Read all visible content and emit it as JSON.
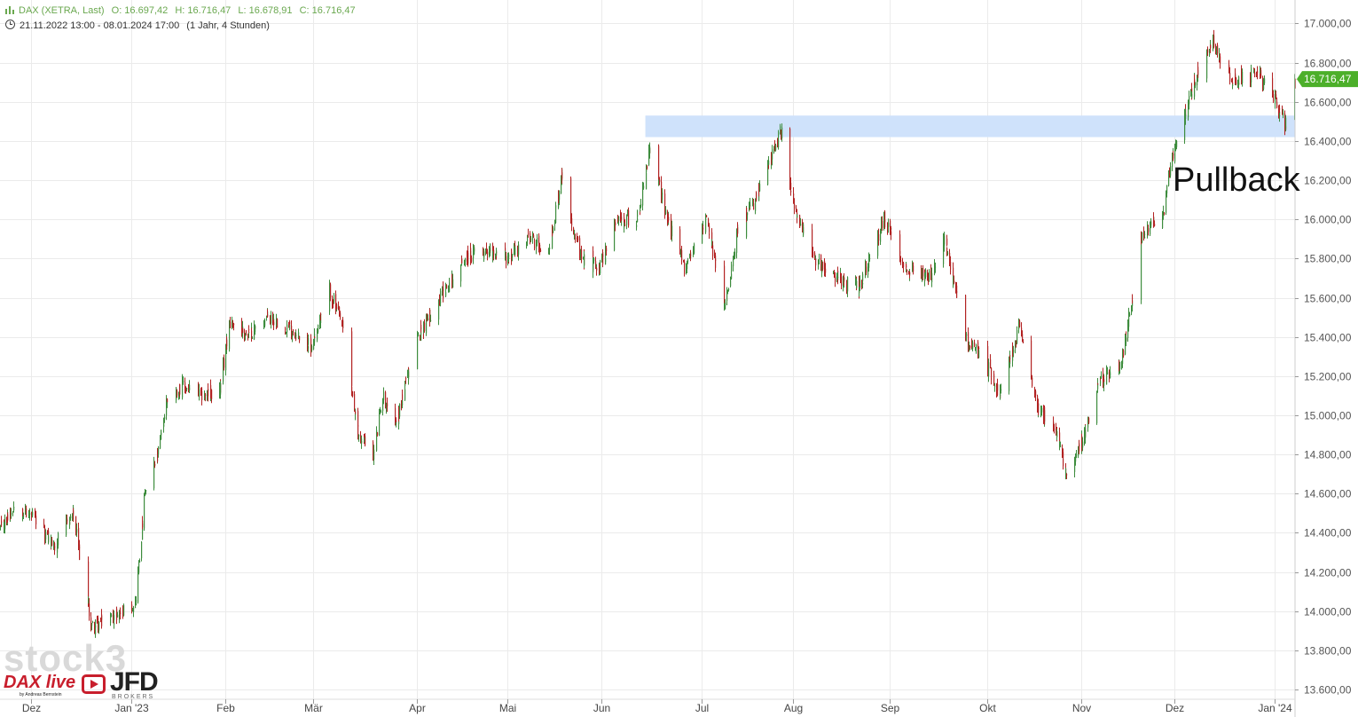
{
  "header": {
    "symbol": "DAX (XETRA, Last)",
    "open": "O: 16.697,42",
    "high": "H: 16.716,47",
    "low": "L: 16.678,91",
    "close": "C: 16.716,47",
    "range": "21.11.2022 13:00 - 08.01.2024 17:00",
    "interval": "(1 Jahr, 4 Stunden)"
  },
  "annotation": {
    "text": "Pullback"
  },
  "watermark": {
    "text": "stock3"
  },
  "branding": {
    "dax": "DAX live",
    "dax_sub": "by Andreas Bernstein",
    "jfd": "JFD",
    "brokers": "BROKERS"
  },
  "colors": {
    "up": "#3d8c3d",
    "down": "#b22222",
    "grid": "#ebebeb",
    "zone": "#cfe2fb",
    "price_tag": "#4caf2a",
    "header_green": "#6aa84f"
  },
  "chart_data": {
    "type": "candlestick",
    "title": "DAX (XETRA, Last)",
    "ylim": [
      13550,
      17120
    ],
    "y_ticks": [
      "17.000,00",
      "16.800,00",
      "16.600,00",
      "16.400,00",
      "16.200,00",
      "16.000,00",
      "15.800,00",
      "15.600,00",
      "15.400,00",
      "15.200,00",
      "15.000,00",
      "14.800,00",
      "14.600,00",
      "14.400,00",
      "14.200,00",
      "14.000,00",
      "13.800,00",
      "13.600,00"
    ],
    "y_tick_values": [
      17000,
      16800,
      16600,
      16400,
      16200,
      16000,
      15800,
      15600,
      15400,
      15200,
      15000,
      14800,
      14600,
      14400,
      14200,
      14000,
      13800,
      13600
    ],
    "x_ticks": [
      "Dez",
      "Jan '23",
      "Feb",
      "Mär",
      "Apr",
      "Mai",
      "Jun",
      "Jul",
      "Aug",
      "Sep",
      "Okt",
      "Nov",
      "Dez",
      "Jan '24"
    ],
    "x_tick_dates": [
      "2022-12-01",
      "2023-01-02",
      "2023-02-01",
      "2023-03-01",
      "2023-04-03",
      "2023-05-02",
      "2023-06-01",
      "2023-07-03",
      "2023-08-01",
      "2023-09-01",
      "2023-10-02",
      "2023-11-01",
      "2023-12-01",
      "2024-01-02"
    ],
    "date_range": [
      "2022-11-21",
      "2024-01-08"
    ],
    "last_price": {
      "value": 16716.47,
      "label": "16.716,47"
    },
    "zone": {
      "start": "2023-06-15",
      "low": 16420,
      "high": 16530
    },
    "path": [
      [
        "2022-11-21",
        14420
      ],
      [
        "2022-11-25",
        14540
      ],
      [
        "2022-12-01",
        14480
      ],
      [
        "2022-12-08",
        14330
      ],
      [
        "2022-12-14",
        14500
      ],
      [
        "2022-12-20",
        13920
      ],
      [
        "2022-12-28",
        13980
      ],
      [
        "2023-01-03",
        14050
      ],
      [
        "2023-01-06",
        14600
      ],
      [
        "2023-01-10",
        14790
      ],
      [
        "2023-01-13",
        15080
      ],
      [
        "2023-01-18",
        15150
      ],
      [
        "2023-01-24",
        15100
      ],
      [
        "2023-01-30",
        15130
      ],
      [
        "2023-02-02",
        15480
      ],
      [
        "2023-02-08",
        15410
      ],
      [
        "2023-02-14",
        15500
      ],
      [
        "2023-02-20",
        15460
      ],
      [
        "2023-02-28",
        15350
      ],
      [
        "2023-03-06",
        15640
      ],
      [
        "2023-03-10",
        15450
      ],
      [
        "2023-03-15",
        14900
      ],
      [
        "2023-03-20",
        14800
      ],
      [
        "2023-03-23",
        15100
      ],
      [
        "2023-03-27",
        14960
      ],
      [
        "2023-04-03",
        15400
      ],
      [
        "2023-04-10",
        15600
      ],
      [
        "2023-04-18",
        15800
      ],
      [
        "2023-04-26",
        15850
      ],
      [
        "2023-05-02",
        15800
      ],
      [
        "2023-05-08",
        15900
      ],
      [
        "2023-05-15",
        15850
      ],
      [
        "2023-05-19",
        16230
      ],
      [
        "2023-05-25",
        15800
      ],
      [
        "2023-05-31",
        15760
      ],
      [
        "2023-06-06",
        16000
      ],
      [
        "2023-06-12",
        16000
      ],
      [
        "2023-06-16",
        16350
      ],
      [
        "2023-06-22",
        16000
      ],
      [
        "2023-06-27",
        15750
      ],
      [
        "2023-07-04",
        16000
      ],
      [
        "2023-07-10",
        15550
      ],
      [
        "2023-07-14",
        15950
      ],
      [
        "2023-07-20",
        16100
      ],
      [
        "2023-07-28",
        16450
      ],
      [
        "2023-08-02",
        16000
      ],
      [
        "2023-08-08",
        15800
      ],
      [
        "2023-08-15",
        15700
      ],
      [
        "2023-08-22",
        15650
      ],
      [
        "2023-08-30",
        16000
      ],
      [
        "2023-09-06",
        15750
      ],
      [
        "2023-09-14",
        15700
      ],
      [
        "2023-09-18",
        15900
      ],
      [
        "2023-09-25",
        15400
      ],
      [
        "2023-10-02",
        15250
      ],
      [
        "2023-10-06",
        15100
      ],
      [
        "2023-10-12",
        15450
      ],
      [
        "2023-10-18",
        15050
      ],
      [
        "2023-10-24",
        14900
      ],
      [
        "2023-10-27",
        14720
      ],
      [
        "2023-11-02",
        14900
      ],
      [
        "2023-11-06",
        15150
      ],
      [
        "2023-11-14",
        15300
      ],
      [
        "2023-11-20",
        15900
      ],
      [
        "2023-11-27",
        16050
      ],
      [
        "2023-12-01",
        16400
      ],
      [
        "2023-12-07",
        16700
      ],
      [
        "2023-12-13",
        16900
      ],
      [
        "2023-12-19",
        16700
      ],
      [
        "2023-12-27",
        16750
      ],
      [
        "2024-01-02",
        16600
      ],
      [
        "2024-01-05",
        16480
      ],
      [
        "2024-01-08",
        16716
      ]
    ]
  }
}
